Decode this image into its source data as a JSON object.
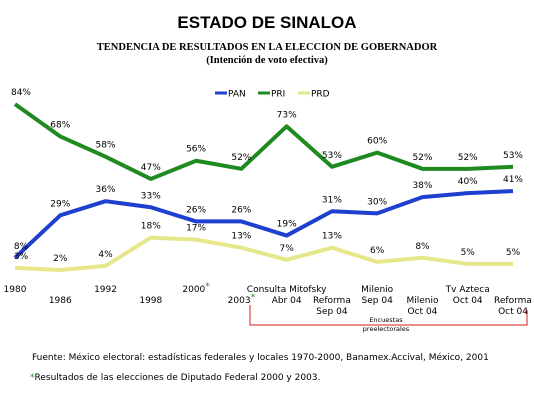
{
  "chart_data": {
    "type": "line",
    "title": "ESTADO DE SINALOA",
    "subtitle": [
      "TENDENCIA DE RESULTADOS EN LA ELECCION DE GOBERNADOR",
      "(Intención de voto efectiva)"
    ],
    "categories": [
      [
        "1980"
      ],
      [
        "1986"
      ],
      [
        "1992"
      ],
      [
        "1998"
      ],
      [
        "2000"
      ],
      [
        "2003"
      ],
      [
        "Consulta Mitofsky",
        "Abr 04"
      ],
      [
        "Reforma",
        "Sep 04"
      ],
      [
        "Milenio",
        "Sep 04"
      ],
      [
        "Milenio",
        "Oct 04"
      ],
      [
        "Tv Azteca",
        "Oct 04"
      ],
      [
        "Reforma",
        "Oct 04"
      ]
    ],
    "footnote_marker": "*",
    "marked_categories": [
      4,
      5
    ],
    "series": [
      {
        "name": "PAN",
        "color": "#1f3fcf",
        "values": [
          8,
          29,
          36,
          33,
          26,
          26,
          19,
          31,
          30,
          38,
          40,
          41
        ],
        "value_labels": [
          "8%",
          "29%",
          "36%",
          "33%",
          "26%",
          "26%",
          "19%",
          "31%",
          "30%",
          "38%",
          "40%",
          "41%"
        ]
      },
      {
        "name": "PRI",
        "color": "#1f8a1f",
        "values": [
          84,
          68,
          58,
          47,
          56,
          52,
          73,
          53,
          60,
          52,
          52,
          53
        ],
        "value_labels": [
          "84%",
          "68%",
          "58%",
          "47%",
          "56%",
          "52%",
          "73%",
          "53%",
          "60%",
          "52%",
          "52%",
          "53%"
        ]
      },
      {
        "name": "PRD",
        "color": "#e6e68a",
        "values": [
          3,
          2,
          4,
          18,
          17,
          13,
          7,
          13,
          6,
          8,
          5,
          5
        ],
        "value_labels": [
          "3%",
          "2%",
          "4%",
          "18%",
          "17%",
          "13%",
          "7%",
          "13%",
          "6%",
          "8%",
          "5%",
          "5%"
        ]
      }
    ],
    "ylim": [
      0,
      88
    ],
    "annotation": [
      "Encuestas",
      "preelectorales"
    ],
    "source": "Fuente: México electoral: estadísticas federales y locales 1970-2000, Banamex.Accival, México, 2001",
    "footnote": "Resultados de las elecciones de Diputado Federal 2000 y 2003."
  }
}
